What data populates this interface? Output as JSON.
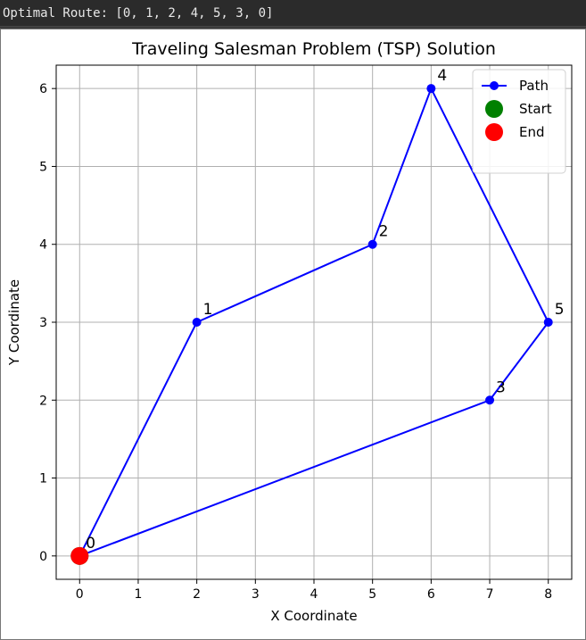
{
  "console": {
    "text": "Optimal Route: [0, 1, 2, 4, 5, 3, 0]"
  },
  "chart_data": {
    "type": "line",
    "title": "Traveling Salesman Problem (TSP) Solution",
    "xlabel": "X Coordinate",
    "ylabel": "Y Coordinate",
    "xlim": [
      -0.4,
      8.4
    ],
    "ylim": [
      -0.3,
      6.3
    ],
    "xticks": [
      "0",
      "1",
      "2",
      "3",
      "4",
      "5",
      "6",
      "7",
      "8"
    ],
    "yticks": [
      "0",
      "1",
      "2",
      "3",
      "4",
      "5",
      "6"
    ],
    "grid": true,
    "legend_position": "top-right",
    "cities": [
      {
        "label": "0",
        "x": 0,
        "y": 0
      },
      {
        "label": "1",
        "x": 2,
        "y": 3
      },
      {
        "label": "2",
        "x": 5,
        "y": 4
      },
      {
        "label": "3",
        "x": 7,
        "y": 2
      },
      {
        "label": "4",
        "x": 6,
        "y": 6
      },
      {
        "label": "5",
        "x": 8,
        "y": 3
      }
    ],
    "route": [
      0,
      1,
      2,
      4,
      5,
      3,
      0
    ],
    "series": [
      {
        "name": "Path",
        "color": "#0000ff",
        "marker": "circle"
      },
      {
        "name": "Start",
        "color": "#008000",
        "marker": "large-circle"
      },
      {
        "name": "End",
        "color": "#ff0000",
        "marker": "large-circle"
      }
    ]
  }
}
